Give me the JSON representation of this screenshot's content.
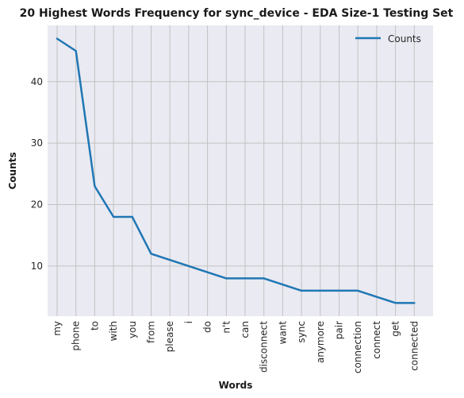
{
  "chart_data": {
    "type": "line",
    "title": "20 Highest Words Frequency for sync_device - EDA Size-1 Testing Set",
    "xlabel": "Words",
    "ylabel": "Counts",
    "categories": [
      "my",
      "phone",
      "to",
      "with",
      "you",
      "from",
      "please",
      "i",
      "do",
      "n't",
      "can",
      "disconnect",
      "want",
      "sync",
      "anymore",
      "pair",
      "connection",
      "connect",
      "get",
      "connected"
    ],
    "series": [
      {
        "name": "Counts",
        "values": [
          47,
          45,
          23,
          18,
          18,
          12,
          11,
          10,
          9,
          8,
          8,
          8,
          7,
          6,
          6,
          6,
          6,
          5,
          4,
          4
        ]
      }
    ],
    "y_ticks": [
      10,
      20,
      30,
      40
    ],
    "ylim": [
      1.85,
      49.15
    ],
    "grid": true,
    "legend_position": "top-right",
    "colors": {
      "line": "#1f77b4",
      "background": "#eaeaf2",
      "grid": "#c2c2c2"
    }
  }
}
